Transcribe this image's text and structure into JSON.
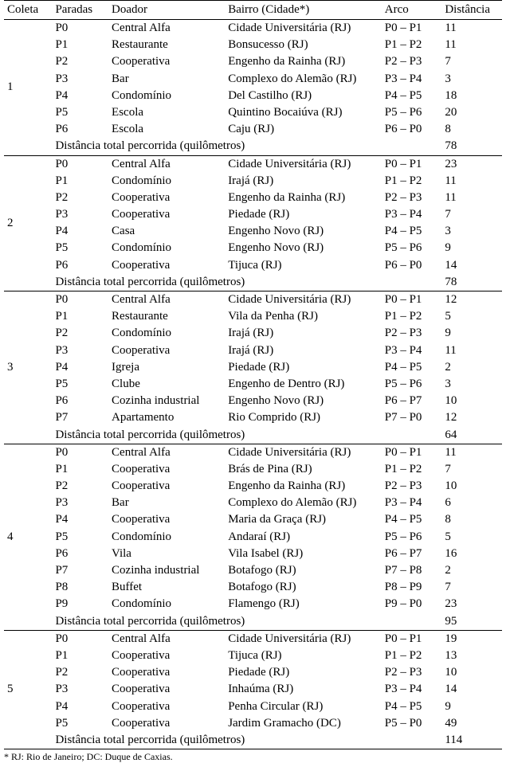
{
  "table": {
    "headers": {
      "coleta": "Coleta",
      "paradas": "Paradas",
      "doador": "Doador",
      "bairro": "Bairro (Cidade*)",
      "arco": "Arco",
      "distancia": "Distância"
    },
    "total_label": "Distância total percorrida (quilômetros)",
    "footnote": "* RJ: Rio de Janeiro; DC: Duque de Caxias.",
    "groups": [
      {
        "coleta": "1",
        "rows": [
          {
            "paradas": "P0",
            "doador": "Central Alfa",
            "bairro": "Cidade Universitária (RJ)",
            "arco": "P0 – P1",
            "dist": "11"
          },
          {
            "paradas": "P1",
            "doador": "Restaurante",
            "bairro": "Bonsucesso (RJ)",
            "arco": "P1 – P2",
            "dist": "11"
          },
          {
            "paradas": "P2",
            "doador": "Cooperativa",
            "bairro": "Engenho da Rainha (RJ)",
            "arco": "P2 – P3",
            "dist": "7"
          },
          {
            "paradas": "P3",
            "doador": "Bar",
            "bairro": "Complexo do Alemão (RJ)",
            "arco": "P3 – P4",
            "dist": "3"
          },
          {
            "paradas": "P4",
            "doador": "Condomínio",
            "bairro": "Del Castilho (RJ)",
            "arco": "P4 – P5",
            "dist": "18"
          },
          {
            "paradas": "P5",
            "doador": "Escola",
            "bairro": "Quintino Bocaiúva (RJ)",
            "arco": "P5 – P6",
            "dist": "20"
          },
          {
            "paradas": "P6",
            "doador": "Escola",
            "bairro": "Caju (RJ)",
            "arco": "P6 – P0",
            "dist": "8"
          }
        ],
        "total": "78"
      },
      {
        "coleta": "2",
        "rows": [
          {
            "paradas": "P0",
            "doador": "Central Alfa",
            "bairro": "Cidade Universitária (RJ)",
            "arco": "P0 – P1",
            "dist": "23"
          },
          {
            "paradas": "P1",
            "doador": "Condomínio",
            "bairro": "Irajá (RJ)",
            "arco": "P1 – P2",
            "dist": "11"
          },
          {
            "paradas": "P2",
            "doador": "Cooperativa",
            "bairro": "Engenho da Rainha (RJ)",
            "arco": "P2 – P3",
            "dist": "11"
          },
          {
            "paradas": "P3",
            "doador": "Cooperativa",
            "bairro": "Piedade (RJ)",
            "arco": "P3 – P4",
            "dist": "7"
          },
          {
            "paradas": "P4",
            "doador": "Casa",
            "bairro": "Engenho Novo (RJ)",
            "arco": "P4 – P5",
            "dist": "3"
          },
          {
            "paradas": "P5",
            "doador": "Condomínio",
            "bairro": "Engenho Novo (RJ)",
            "arco": "P5 – P6",
            "dist": "9"
          },
          {
            "paradas": "P6",
            "doador": "Cooperativa",
            "bairro": "Tijuca (RJ)",
            "arco": "P6 – P0",
            "dist": "14"
          }
        ],
        "total": "78"
      },
      {
        "coleta": "3",
        "rows": [
          {
            "paradas": "P0",
            "doador": "Central Alfa",
            "bairro": "Cidade Universitária (RJ)",
            "arco": "P0 – P1",
            "dist": "12"
          },
          {
            "paradas": "P1",
            "doador": "Restaurante",
            "bairro": "Vila da Penha (RJ)",
            "arco": "P1 – P2",
            "dist": "5"
          },
          {
            "paradas": "P2",
            "doador": "Condomínio",
            "bairro": "Irajá (RJ)",
            "arco": "P2 – P3",
            "dist": "9"
          },
          {
            "paradas": "P3",
            "doador": "Cooperativa",
            "bairro": "Irajá (RJ)",
            "arco": "P3 – P4",
            "dist": "11"
          },
          {
            "paradas": "P4",
            "doador": "Igreja",
            "bairro": "Piedade (RJ)",
            "arco": "P4 – P5",
            "dist": "2"
          },
          {
            "paradas": "P5",
            "doador": "Clube",
            "bairro": "Engenho de Dentro (RJ)",
            "arco": "P5 – P6",
            "dist": "3"
          },
          {
            "paradas": "P6",
            "doador": "Cozinha industrial",
            "bairro": "Engenho Novo (RJ)",
            "arco": "P6 – P7",
            "dist": "10"
          },
          {
            "paradas": "P7",
            "doador": "Apartamento",
            "bairro": "Rio Comprido (RJ)",
            "arco": "P7 – P0",
            "dist": "12"
          }
        ],
        "total": "64"
      },
      {
        "coleta": "4",
        "rows": [
          {
            "paradas": "P0",
            "doador": "Central Alfa",
            "bairro": "Cidade Universitária (RJ)",
            "arco": "P0 – P1",
            "dist": "11"
          },
          {
            "paradas": "P1",
            "doador": "Cooperativa",
            "bairro": "Brás de Pina (RJ)",
            "arco": "P1 – P2",
            "dist": "7"
          },
          {
            "paradas": "P2",
            "doador": "Cooperativa",
            "bairro": "Engenho da Rainha (RJ)",
            "arco": "P2 – P3",
            "dist": "10"
          },
          {
            "paradas": "P3",
            "doador": "Bar",
            "bairro": "Complexo do Alemão (RJ)",
            "arco": "P3 – P4",
            "dist": "6"
          },
          {
            "paradas": "P4",
            "doador": "Cooperativa",
            "bairro": "Maria da Graça (RJ)",
            "arco": "P4 – P5",
            "dist": "8"
          },
          {
            "paradas": "P5",
            "doador": "Condomínio",
            "bairro": "Andaraí (RJ)",
            "arco": "P5 – P6",
            "dist": "5"
          },
          {
            "paradas": "P6",
            "doador": "Vila",
            "bairro": "Vila Isabel (RJ)",
            "arco": "P6 – P7",
            "dist": "16"
          },
          {
            "paradas": "P7",
            "doador": "Cozinha industrial",
            "bairro": "Botafogo (RJ)",
            "arco": "P7 – P8",
            "dist": "2"
          },
          {
            "paradas": "P8",
            "doador": "Buffet",
            "bairro": "Botafogo (RJ)",
            "arco": "P8 – P9",
            "dist": "7"
          },
          {
            "paradas": "P9",
            "doador": "Condomínio",
            "bairro": "Flamengo (RJ)",
            "arco": "P9 – P0",
            "dist": "23"
          }
        ],
        "total": "95"
      },
      {
        "coleta": "5",
        "rows": [
          {
            "paradas": "P0",
            "doador": "Central Alfa",
            "bairro": "Cidade Universitária (RJ)",
            "arco": "P0 – P1",
            "dist": "19"
          },
          {
            "paradas": "P1",
            "doador": "Cooperativa",
            "bairro": "Tijuca (RJ)",
            "arco": "P1 – P2",
            "dist": "13"
          },
          {
            "paradas": "P2",
            "doador": "Cooperativa",
            "bairro": "Piedade (RJ)",
            "arco": "P2 – P3",
            "dist": "10"
          },
          {
            "paradas": "P3",
            "doador": "Cooperativa",
            "bairro": "Inhaúma (RJ)",
            "arco": "P3 – P4",
            "dist": "14"
          },
          {
            "paradas": "P4",
            "doador": "Cooperativa",
            "bairro": "Penha Circular (RJ)",
            "arco": "P4 – P5",
            "dist": "9"
          },
          {
            "paradas": "P5",
            "doador": "Cooperativa",
            "bairro": "Jardim Gramacho (DC)",
            "arco": "P5 – P0",
            "dist": "49"
          }
        ],
        "total": "114"
      }
    ]
  },
  "style": {
    "font_family": "Times New Roman",
    "body_font_size_pt": 11,
    "footnote_font_size_pt": 9,
    "text_color": "#000000",
    "background_color": "#ffffff",
    "border_color": "#000000"
  }
}
